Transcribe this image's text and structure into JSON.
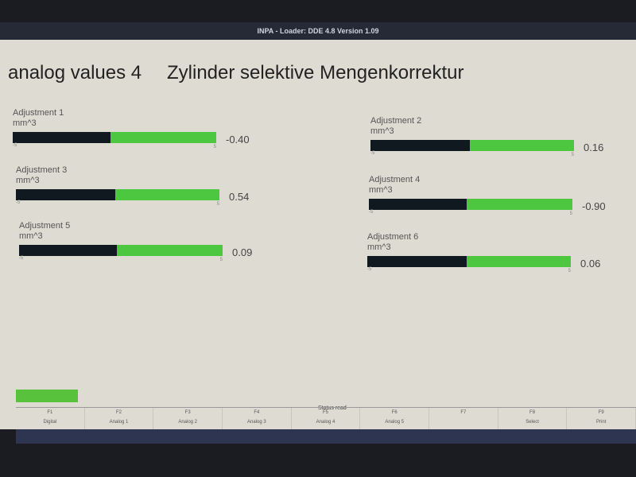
{
  "window": {
    "title": "INPA - Loader: DDE 4.8 Version 1.09"
  },
  "header": {
    "section": "analog values 4",
    "title": "Zylinder selektive Mengenkorrektur"
  },
  "adjustments": [
    {
      "label": "Adjustment 1",
      "unit": "mm^3",
      "value": "-0.40",
      "min": "-5",
      "max": "5",
      "fill_fraction": 0.48
    },
    {
      "label": "Adjustment 2",
      "unit": "mm^3",
      "value": "0.16",
      "min": "-5",
      "max": "5",
      "fill_fraction": 0.49
    },
    {
      "label": "Adjustment 3",
      "unit": "mm^3",
      "value": "0.54",
      "min": "-5",
      "max": "5",
      "fill_fraction": 0.49
    },
    {
      "label": "Adjustment 4",
      "unit": "mm^3",
      "value": "-0.90",
      "min": "-5",
      "max": "5",
      "fill_fraction": 0.48
    },
    {
      "label": "Adjustment 5",
      "unit": "mm^3",
      "value": "0.09",
      "min": "-5",
      "max": "5",
      "fill_fraction": 0.48
    },
    {
      "label": "Adjustment 6",
      "unit": "mm^3",
      "value": "0.06",
      "min": "-5",
      "max": "5",
      "fill_fraction": 0.49
    }
  ],
  "status": {
    "text": "Status read"
  },
  "fkeys": [
    {
      "key": "F1",
      "label": "Digital"
    },
    {
      "key": "F2",
      "label": "Analog 1"
    },
    {
      "key": "F3",
      "label": "Analog 2"
    },
    {
      "key": "F4",
      "label": "Analog 3"
    },
    {
      "key": "F5",
      "label": "Analog 4"
    },
    {
      "key": "F6",
      "label": "Analog 5"
    },
    {
      "key": "F7",
      "label": ""
    },
    {
      "key": "F8",
      "label": "Select"
    },
    {
      "key": "F9",
      "label": "Print"
    }
  ],
  "colors": {
    "bar_green": "#4cc73f",
    "bar_fill": "#101820",
    "status_green": "#58c23c"
  }
}
